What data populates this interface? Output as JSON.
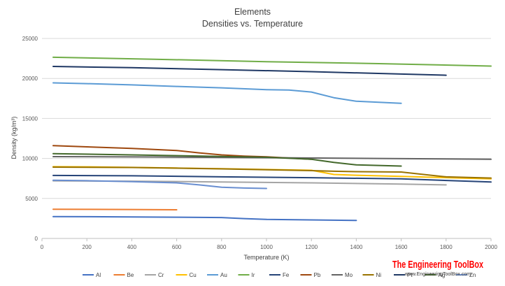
{
  "chart_data": {
    "type": "line",
    "title": "Elements",
    "subtitle": "Densities vs. Temperature",
    "xlabel": "Temperature  (K)",
    "ylabel": "Density  (kg/m³)",
    "xlim": [
      0,
      2000
    ],
    "ylim": [
      0,
      25000
    ],
    "x_ticks": [
      0,
      200,
      400,
      600,
      800,
      1000,
      1200,
      1400,
      1600,
      1800,
      2000
    ],
    "y_ticks": [
      0,
      5000,
      10000,
      15000,
      20000,
      25000
    ],
    "grid": true,
    "legend_position": "bottom",
    "series": [
      {
        "name": "Al",
        "color": "#4472c4",
        "x": [
          50,
          200,
          400,
          600,
          800,
          900,
          1000,
          1200,
          1400
        ],
        "y": [
          2730,
          2720,
          2690,
          2660,
          2610,
          2480,
          2375,
          2315,
          2250
        ]
      },
      {
        "name": "Be",
        "color": "#ed7d31",
        "x": [
          50,
          200,
          400,
          600
        ],
        "y": [
          3650,
          3640,
          3620,
          3580
        ]
      },
      {
        "name": "Cr",
        "color": "#a5a5a5",
        "x": [
          50,
          400,
          800,
          1200,
          1600,
          1800
        ],
        "y": [
          7200,
          7160,
          7060,
          6950,
          6790,
          6700
        ]
      },
      {
        "name": "Cu",
        "color": "#ffc000",
        "x": [
          50,
          200,
          400,
          600,
          800,
          1000,
          1200,
          1300,
          1400,
          1600,
          1800,
          2000
        ],
        "y": [
          8970,
          8950,
          8880,
          8800,
          8720,
          8620,
          8520,
          8000,
          7900,
          7750,
          7600,
          7450
        ]
      },
      {
        "name": "Au",
        "color": "#5b9bd5",
        "x": [
          50,
          200,
          400,
          600,
          800,
          1000,
          1100,
          1200,
          1300,
          1400,
          1600
        ],
        "y": [
          19450,
          19350,
          19200,
          19000,
          18830,
          18600,
          18550,
          18300,
          17600,
          17150,
          16900
        ]
      },
      {
        "name": "Ir",
        "color": "#70ad47",
        "x": [
          50,
          500,
          1000,
          1500,
          2000
        ],
        "y": [
          22650,
          22400,
          22100,
          21850,
          21550
        ]
      },
      {
        "name": "Fe",
        "color": "#264478",
        "x": [
          50,
          400,
          800,
          1200,
          1600,
          2000
        ],
        "y": [
          7880,
          7830,
          7700,
          7600,
          7450,
          7050
        ]
      },
      {
        "name": "Pb",
        "color": "#9e480e",
        "x": [
          50,
          200,
          400,
          600,
          700,
          800,
          900,
          1000,
          1200
        ],
        "y": [
          11600,
          11450,
          11250,
          11000,
          10700,
          10450,
          10300,
          10200,
          9900
        ]
      },
      {
        "name": "Mo",
        "color": "#636363",
        "x": [
          50,
          500,
          1000,
          1500,
          2000
        ],
        "y": [
          10230,
          10180,
          10100,
          10000,
          9900
        ]
      },
      {
        "name": "Ni",
        "color": "#997300",
        "x": [
          50,
          400,
          800,
          1000,
          1200,
          1300,
          1400,
          1600,
          1700,
          1800,
          2000
        ],
        "y": [
          8920,
          8870,
          8700,
          8580,
          8480,
          8400,
          8350,
          8300,
          8000,
          7700,
          7550
        ]
      },
      {
        "name": "Pt",
        "color": "#1f3864",
        "x": [
          50,
          400,
          800,
          1200,
          1600,
          1800
        ],
        "y": [
          21500,
          21350,
          21100,
          20850,
          20550,
          20400
        ]
      },
      {
        "name": "Ag",
        "color": "#43682b",
        "x": [
          50,
          400,
          800,
          1000,
          1200,
          1300,
          1400,
          1600
        ],
        "y": [
          10600,
          10450,
          10250,
          10150,
          9900,
          9500,
          9200,
          9050
        ]
      },
      {
        "name": "Zn",
        "color": "#698ed0",
        "x": [
          50,
          200,
          400,
          600,
          700,
          800,
          900,
          1000
        ],
        "y": [
          7280,
          7220,
          7100,
          6950,
          6700,
          6400,
          6300,
          6250
        ]
      }
    ]
  },
  "branding": {
    "name": "The Engineering ToolBox",
    "url": "www.EngineeringToolBox.com"
  }
}
